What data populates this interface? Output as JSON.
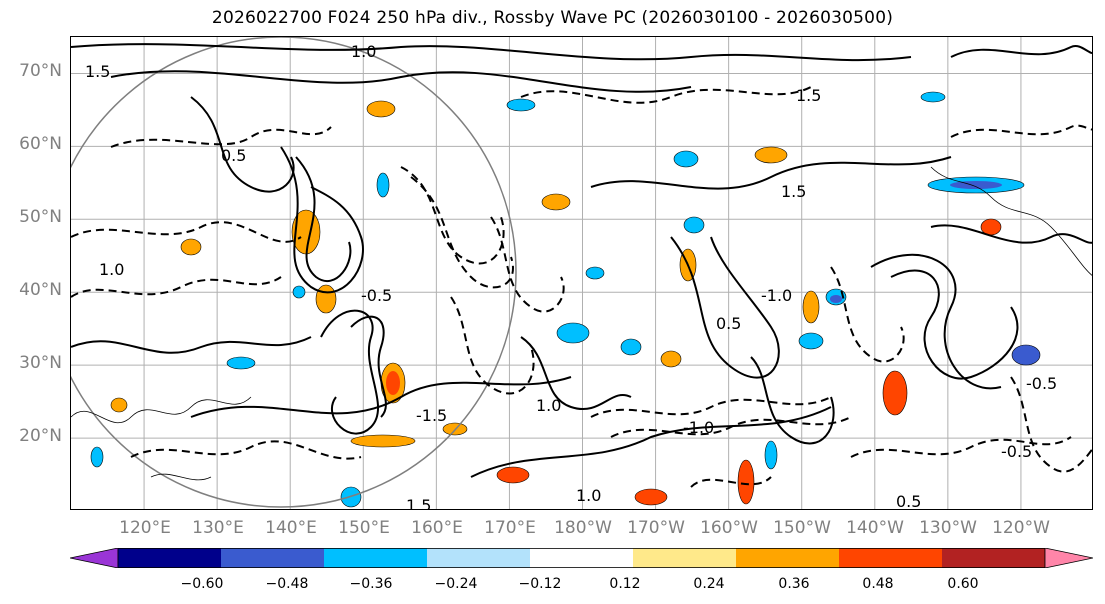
{
  "title": "2026022700 F024 250 hPa div., Rossby Wave PC (2026030100 - 2026030500)",
  "lat_labels": [
    "70°N",
    "60°N",
    "50°N",
    "40°N",
    "30°N",
    "20°N"
  ],
  "lon_labels": [
    "120°E",
    "130°E",
    "140°E",
    "150°E",
    "160°E",
    "170°E",
    "180°W",
    "170°W",
    "160°W",
    "150°W",
    "140°W",
    "130°W",
    "120°W"
  ],
  "colorbar": {
    "colors": [
      "#9a35d6",
      "#00008b",
      "#3a5bcf",
      "#00bfff",
      "#b3e2fb",
      "#ffffff",
      "#ffe98a",
      "#ffa500",
      "#ff4500",
      "#b22222",
      "#ff85a9"
    ],
    "ticks": [
      "−0.60",
      "−0.48",
      "−0.36",
      "−0.24",
      "−0.12",
      "0.12",
      "0.24",
      "0.36",
      "0.48",
      "0.60"
    ]
  },
  "contour_labels": [
    "1.5",
    "1.0",
    "0.5",
    "1.5",
    "1.0",
    "-0.5",
    "-1.0",
    "0.5",
    "-1.5",
    "1.0",
    "1.5",
    "-0.5",
    "0.5",
    "1.0",
    "-1.0",
    "-0.5",
    "1.5"
  ],
  "map": {
    "projection": "equirectangular",
    "lat_range": [
      10,
      75
    ],
    "lon_range": [
      110,
      250
    ],
    "fill_threshold": 0.12,
    "shading_variable": "250 hPa divergence",
    "contour_variable": "Rossby Wave PC"
  }
}
